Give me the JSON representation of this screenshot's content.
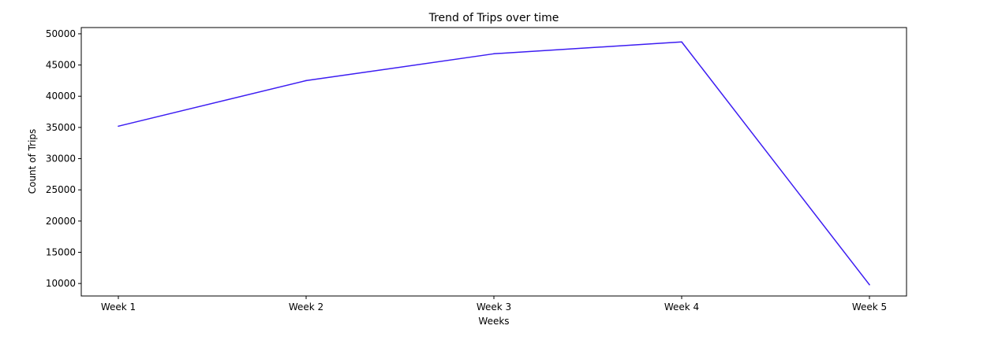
{
  "chart_data": {
    "type": "line",
    "title": "Trend of Trips over time",
    "xlabel": "Weeks",
    "ylabel": "Count of Trips",
    "categories": [
      "Week 1",
      "Week 2",
      "Week 3",
      "Week 4",
      "Week 5"
    ],
    "series": [
      {
        "values": [
          35200,
          42500,
          46800,
          48700,
          9800
        ],
        "color": "#3c1cf2"
      }
    ],
    "ylim": [
      8000,
      51000
    ],
    "yticks": [
      10000,
      15000,
      20000,
      25000,
      30000,
      35000,
      40000,
      45000,
      50000
    ],
    "grid": false,
    "legend": "none"
  }
}
